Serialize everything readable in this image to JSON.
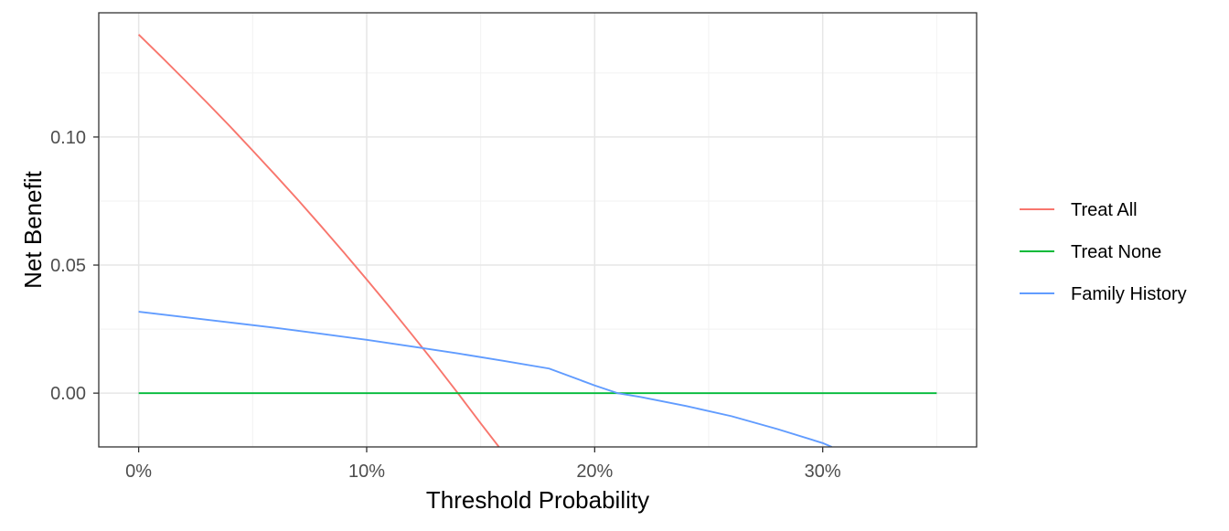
{
  "chart_data": {
    "type": "line",
    "title": "",
    "xlabel": "Threshold Probability",
    "ylabel": "Net Benefit",
    "xlim": [
      -0.0175,
      0.3675
    ],
    "ylim": [
      -0.021,
      0.1485
    ],
    "x_ticks": [
      {
        "value": 0.0,
        "label": "0%"
      },
      {
        "value": 0.1,
        "label": "10%"
      },
      {
        "value": 0.2,
        "label": "20%"
      },
      {
        "value": 0.3,
        "label": "30%"
      }
    ],
    "y_ticks": [
      {
        "value": 0.0,
        "label": "0.00"
      },
      {
        "value": 0.05,
        "label": "0.05"
      },
      {
        "value": 0.1,
        "label": "0.10"
      }
    ],
    "x_minor_grid": [
      0.05,
      0.15,
      0.25,
      0.35
    ],
    "y_minor_grid": [
      -0.025,
      0.025,
      0.075,
      0.125
    ],
    "grid": true,
    "legend_position": "right",
    "series": [
      {
        "name": "Treat All",
        "color": "#F8766D",
        "x": [
          0.0,
          0.01,
          0.02,
          0.03,
          0.04,
          0.05,
          0.06,
          0.07,
          0.08,
          0.09,
          0.1,
          0.11,
          0.12,
          0.13,
          0.14,
          0.15,
          0.158
        ],
        "y": [
          0.14,
          0.1313,
          0.1224,
          0.1134,
          0.1042,
          0.0947,
          0.0851,
          0.0753,
          0.0652,
          0.0549,
          0.0444,
          0.0337,
          0.0227,
          0.0115,
          0.0,
          -0.0118,
          -0.021
        ]
      },
      {
        "name": "Treat None",
        "color": "#00BA38",
        "x": [
          0.0,
          0.35
        ],
        "y": [
          0.0,
          0.0
        ]
      },
      {
        "name": "Family History",
        "color": "#619CFF",
        "x": [
          0.0,
          0.02,
          0.04,
          0.06,
          0.08,
          0.1,
          0.12,
          0.14,
          0.16,
          0.18,
          0.2,
          0.21,
          0.22,
          0.24,
          0.26,
          0.28,
          0.3,
          0.304
        ],
        "y": [
          0.0318,
          0.0297,
          0.0276,
          0.0255,
          0.0232,
          0.0208,
          0.0182,
          0.0155,
          0.0126,
          0.0096,
          0.003,
          0.0,
          -0.0015,
          -0.005,
          -0.009,
          -0.014,
          -0.0195,
          -0.021
        ]
      }
    ]
  }
}
